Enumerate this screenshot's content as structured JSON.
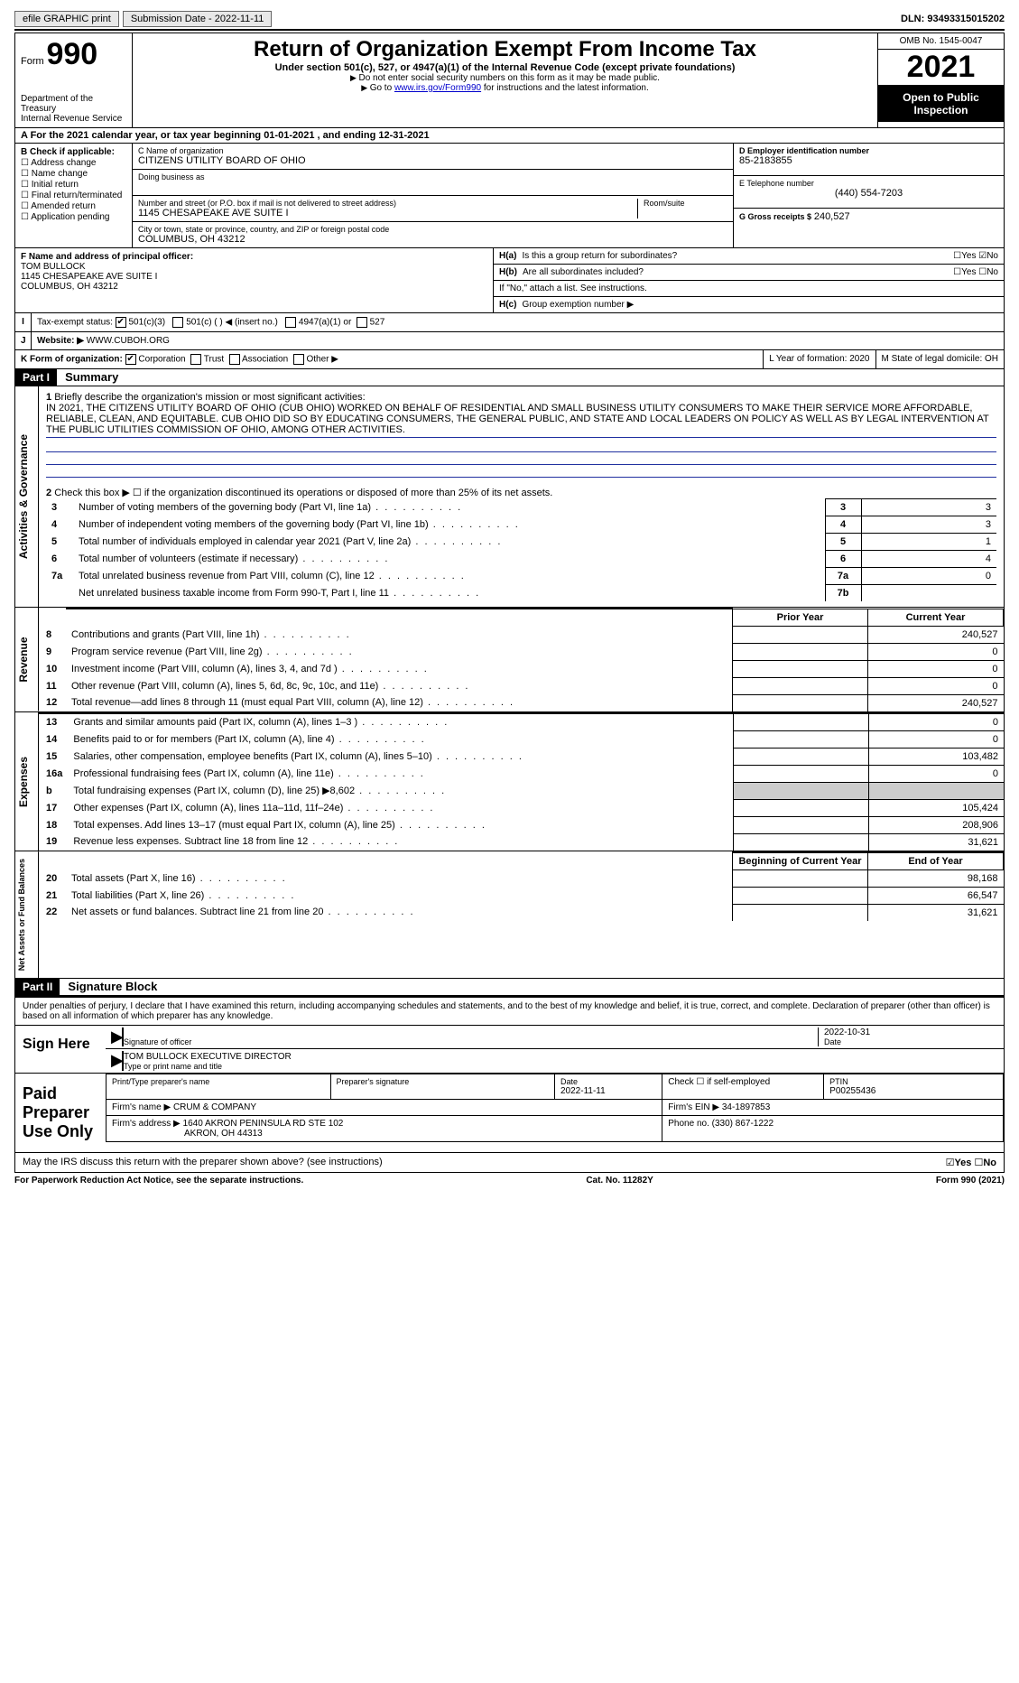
{
  "top": {
    "efile": "efile GRAPHIC print",
    "submission": "Submission Date - 2022-11-11",
    "dln": "DLN: 93493315015202"
  },
  "header": {
    "form_word": "Form",
    "form_no": "990",
    "dept": "Department of the Treasury",
    "irs": "Internal Revenue Service",
    "title": "Return of Organization Exempt From Income Tax",
    "sub": "Under section 501(c), 527, or 4947(a)(1) of the Internal Revenue Code (except private foundations)",
    "note1": "Do not enter social security numbers on this form as it may be made public.",
    "note2_pre": "Go to ",
    "note2_link": "www.irs.gov/Form990",
    "note2_post": " for instructions and the latest information.",
    "omb": "OMB No. 1545-0047",
    "year": "2021",
    "open": "Open to Public Inspection"
  },
  "rowA": "A For the 2021 calendar year, or tax year beginning 01-01-2021    , and ending 12-31-2021",
  "colB": {
    "title": "B Check if applicable:",
    "items": [
      "Address change",
      "Name change",
      "Initial return",
      "Final return/terminated",
      "Amended return",
      "Application pending"
    ]
  },
  "colC": {
    "name_label": "C Name of organization",
    "name": "CITIZENS UTILITY BOARD OF OHIO",
    "dba_label": "Doing business as",
    "addr_label": "Number and street (or P.O. box if mail is not delivered to street address)",
    "addr": "1145 CHESAPEAKE AVE SUITE I",
    "room_label": "Room/suite",
    "city_label": "City or town, state or province, country, and ZIP or foreign postal code",
    "city": "COLUMBUS, OH  43212"
  },
  "colD": {
    "ein_label": "D Employer identification number",
    "ein": "85-2183855",
    "phone_label": "E Telephone number",
    "phone": "(440) 554-7203",
    "gross_label": "G Gross receipts $",
    "gross": "240,527"
  },
  "officer": {
    "label": "F  Name and address of principal officer:",
    "name": "TOM BULLOCK",
    "addr1": "1145 CHESAPEAKE AVE SUITE I",
    "addr2": "COLUMBUS, OH  43212"
  },
  "hsection": {
    "ha": "Is this a group return for subordinates?",
    "hb": "Are all subordinates included?",
    "hb_note": "If \"No,\" attach a list. See instructions.",
    "hc": "Group exemption number ▶",
    "yes": "Yes",
    "no": "No"
  },
  "status": {
    "label": "Tax-exempt status:",
    "opt1": "501(c)(3)",
    "opt2": "501(c) (  ) ◀ (insert no.)",
    "opt3": "4947(a)(1) or",
    "opt4": "527"
  },
  "website": {
    "label": "Website: ▶",
    "value": "WWW.CUBOH.ORG"
  },
  "krow": {
    "label": "K Form of organization:",
    "opts": [
      "Corporation",
      "Trust",
      "Association",
      "Other ▶"
    ],
    "l": "L Year of formation: 2020",
    "m": "M State of legal domicile: OH"
  },
  "part1": {
    "hdr": "Part I",
    "title": "Summary",
    "q1": "Briefly describe the organization's mission or most significant activities:",
    "mission": "IN 2021, THE CITIZENS UTILITY BOARD OF OHIO (CUB OHIO) WORKED ON BEHALF OF RESIDENTIAL AND SMALL BUSINESS UTILITY CONSUMERS TO MAKE THEIR SERVICE MORE AFFORDABLE, RELIABLE, CLEAN, AND EQUITABLE. CUB OHIO DID SO BY EDUCATING CONSUMERS, THE GENERAL PUBLIC, AND STATE AND LOCAL LEADERS ON POLICY AS WELL AS BY LEGAL INTERVENTION AT THE PUBLIC UTILITIES COMMISSION OF OHIO, AMONG OTHER ACTIVITIES.",
    "q2": "Check this box ▶ ☐  if the organization discontinued its operations or disposed of more than 25% of its net assets.",
    "vert_ag": "Activities & Governance",
    "vert_rev": "Revenue",
    "vert_exp": "Expenses",
    "vert_na": "Net Assets or Fund Balances",
    "rows_gov": [
      {
        "n": "3",
        "t": "Number of voting members of the governing body (Part VI, line 1a)",
        "box": "3",
        "v": "3"
      },
      {
        "n": "4",
        "t": "Number of independent voting members of the governing body (Part VI, line 1b)",
        "box": "4",
        "v": "3"
      },
      {
        "n": "5",
        "t": "Total number of individuals employed in calendar year 2021 (Part V, line 2a)",
        "box": "5",
        "v": "1"
      },
      {
        "n": "6",
        "t": "Total number of volunteers (estimate if necessary)",
        "box": "6",
        "v": "4"
      },
      {
        "n": "7a",
        "t": "Total unrelated business revenue from Part VIII, column (C), line 12",
        "box": "7a",
        "v": "0"
      },
      {
        "n": "",
        "t": "Net unrelated business taxable income from Form 990-T, Part I, line 11",
        "box": "7b",
        "v": ""
      }
    ],
    "prior_hdr": "Prior Year",
    "current_hdr": "Current Year",
    "rows_rev": [
      {
        "n": "8",
        "t": "Contributions and grants (Part VIII, line 1h)",
        "p": "",
        "c": "240,527"
      },
      {
        "n": "9",
        "t": "Program service revenue (Part VIII, line 2g)",
        "p": "",
        "c": "0"
      },
      {
        "n": "10",
        "t": "Investment income (Part VIII, column (A), lines 3, 4, and 7d )",
        "p": "",
        "c": "0"
      },
      {
        "n": "11",
        "t": "Other revenue (Part VIII, column (A), lines 5, 6d, 8c, 9c, 10c, and 11e)",
        "p": "",
        "c": "0"
      },
      {
        "n": "12",
        "t": "Total revenue—add lines 8 through 11 (must equal Part VIII, column (A), line 12)",
        "p": "",
        "c": "240,527"
      }
    ],
    "rows_exp": [
      {
        "n": "13",
        "t": "Grants and similar amounts paid (Part IX, column (A), lines 1–3 )",
        "p": "",
        "c": "0"
      },
      {
        "n": "14",
        "t": "Benefits paid to or for members (Part IX, column (A), line 4)",
        "p": "",
        "c": "0"
      },
      {
        "n": "15",
        "t": "Salaries, other compensation, employee benefits (Part IX, column (A), lines 5–10)",
        "p": "",
        "c": "103,482"
      },
      {
        "n": "16a",
        "t": "Professional fundraising fees (Part IX, column (A), line 11e)",
        "p": "",
        "c": "0"
      },
      {
        "n": "b",
        "t": "Total fundraising expenses (Part IX, column (D), line 25) ▶8,602",
        "p": "grey",
        "c": "grey"
      },
      {
        "n": "17",
        "t": "Other expenses (Part IX, column (A), lines 11a–11d, 11f–24e)",
        "p": "",
        "c": "105,424"
      },
      {
        "n": "18",
        "t": "Total expenses. Add lines 13–17 (must equal Part IX, column (A), line 25)",
        "p": "",
        "c": "208,906"
      },
      {
        "n": "19",
        "t": "Revenue less expenses. Subtract line 18 from line 12",
        "p": "",
        "c": "31,621"
      }
    ],
    "begin_hdr": "Beginning of Current Year",
    "end_hdr": "End of Year",
    "rows_na": [
      {
        "n": "20",
        "t": "Total assets (Part X, line 16)",
        "p": "",
        "c": "98,168"
      },
      {
        "n": "21",
        "t": "Total liabilities (Part X, line 26)",
        "p": "",
        "c": "66,547"
      },
      {
        "n": "22",
        "t": "Net assets or fund balances. Subtract line 21 from line 20",
        "p": "",
        "c": "31,621"
      }
    ]
  },
  "part2": {
    "hdr": "Part II",
    "title": "Signature Block",
    "decl": "Under penalties of perjury, I declare that I have examined this return, including accompanying schedules and statements, and to the best of my knowledge and belief, it is true, correct, and complete. Declaration of preparer (other than officer) is based on all information of which preparer has any knowledge.",
    "sign_here": "Sign Here",
    "sig_officer": "Signature of officer",
    "sig_date": "2022-10-31",
    "date_label": "Date",
    "typed": "TOM BULLOCK  EXECUTIVE DIRECTOR",
    "typed_label": "Type or print name and title",
    "paid": "Paid Preparer Use Only",
    "prep_name_label": "Print/Type preparer's name",
    "prep_sig_label": "Preparer's signature",
    "prep_date": "2022-11-11",
    "check_self": "Check ☐ if self-employed",
    "ptin_label": "PTIN",
    "ptin": "P00255436",
    "firm_name_label": "Firm's name    ▶",
    "firm_name": "CRUM & COMPANY",
    "firm_ein_label": "Firm's EIN ▶",
    "firm_ein": "34-1897853",
    "firm_addr_label": "Firm's address ▶",
    "firm_addr1": "1640 AKRON PENINSULA RD STE 102",
    "firm_addr2": "AKRON, OH  44313",
    "firm_phone_label": "Phone no.",
    "firm_phone": "(330) 867-1222",
    "discuss": "May the IRS discuss this return with the preparer shown above? (see instructions)"
  },
  "footer": {
    "left": "For Paperwork Reduction Act Notice, see the separate instructions.",
    "mid": "Cat. No. 11282Y",
    "right": "Form 990 (2021)"
  }
}
